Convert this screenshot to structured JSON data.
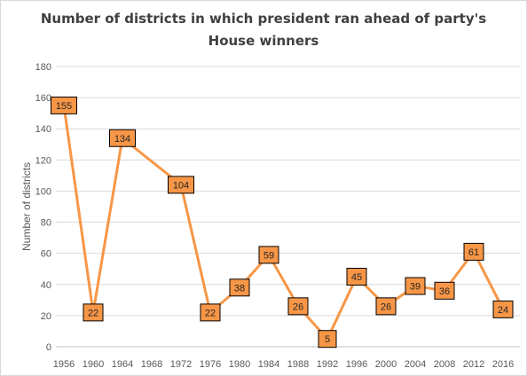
{
  "chart_data": {
    "type": "line",
    "title": "Number of districts in which president ran ahead of party's\nHouse winners",
    "xlabel": "",
    "ylabel": "Number of districts",
    "x": [
      "1956",
      "1960",
      "1964",
      "1968",
      "1972",
      "1976",
      "1980",
      "1984",
      "1988",
      "1992",
      "1996",
      "2000",
      "2004",
      "2008",
      "2012",
      "2016"
    ],
    "series": [
      {
        "values": [
          155,
          22,
          134,
          null,
          104,
          22,
          38,
          59,
          26,
          5,
          45,
          26,
          39,
          36,
          61,
          24
        ],
        "color": "#f79646"
      }
    ],
    "data_labels": [
      "155",
      "22",
      "134",
      "",
      "104",
      "22",
      "38",
      "59",
      "26",
      "5",
      "45",
      "26",
      "39",
      "36",
      "61",
      "24"
    ],
    "ylim": [
      0,
      180
    ],
    "yticks": [
      "0",
      "20",
      "40",
      "60",
      "80",
      "100",
      "120",
      "140",
      "160",
      "180"
    ],
    "grid": true,
    "legend": "none",
    "colors": {
      "line": "#f79646",
      "marker_fill": "#f79646",
      "marker_border": "#000000",
      "grid": "#d9d9d9",
      "axis": "#bfbfbf"
    }
  }
}
